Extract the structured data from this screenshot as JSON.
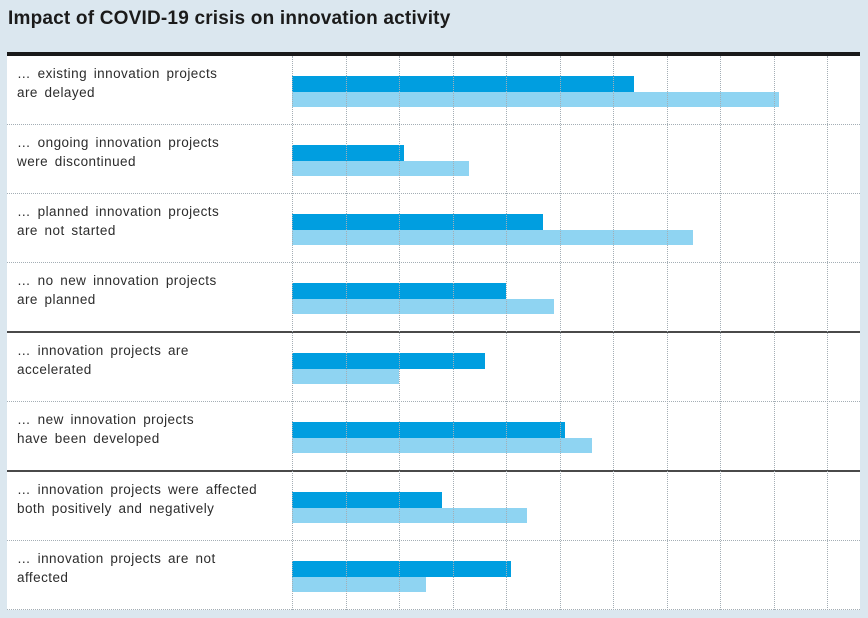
{
  "title": "Impact of COVID-19 crisis on innovation activity",
  "colors": {
    "page_background": "#dbe7ef",
    "panel_background": "#ffffff",
    "bar_dark_blue": "#009ee0",
    "bar_light_blue": "#8fd4f2",
    "gridline_dotted": "#a4aeb5",
    "group_separator_solid": "#4a4a4a",
    "title_rule": "#1a1a1a",
    "text": "#2c2c2c"
  },
  "labels": [
    {
      "line1": "… existing innovation projects",
      "line2": "are delayed"
    },
    {
      "line1": "… ongoing innovation projects",
      "line2": "were discontinued"
    },
    {
      "line1": "… planned innovation projects",
      "line2": "are not started"
    },
    {
      "line1": "… no new innovation projects",
      "line2": "are planned"
    },
    {
      "line1": "… innovation projects are",
      "line2": "accelerated"
    },
    {
      "line1": "… new innovation projects",
      "line2": "have been developed"
    },
    {
      "line1": "… innovation projects were affected",
      "line2": "both positively and negatively"
    },
    {
      "line1": "… innovation projects are not",
      "line2": "affected"
    }
  ],
  "chart_data": {
    "type": "bar",
    "orientation": "horizontal",
    "title": "Impact of COVID-19 crisis on innovation activity",
    "categories": [
      "… existing innovation projects are delayed",
      "… ongoing innovation projects were discontinued",
      "… planned innovation projects are not started",
      "… no new innovation projects are planned",
      "… innovation projects are accelerated",
      "… new innovation projects have been developed",
      "… innovation projects were affected both positively and negatively",
      "… innovation projects are not affected"
    ],
    "series": [
      {
        "name": "dark-blue-bar",
        "color": "#009ee0",
        "values": [
          64,
          21,
          47,
          40,
          36,
          51,
          28,
          41
        ]
      },
      {
        "name": "light-blue-bar",
        "color": "#8fd4f2",
        "values": [
          91,
          33,
          75,
          49,
          20,
          56,
          44,
          25
        ]
      }
    ],
    "x_axis": {
      "min": 0,
      "max": 100,
      "tick_step": 10,
      "gridlines": "dotted",
      "tick_labels_visible": false
    },
    "legend_visible": false,
    "grid": true,
    "solid_separators_after_category_index": [
      3,
      5
    ],
    "values_estimated_from_gridlines": true
  }
}
